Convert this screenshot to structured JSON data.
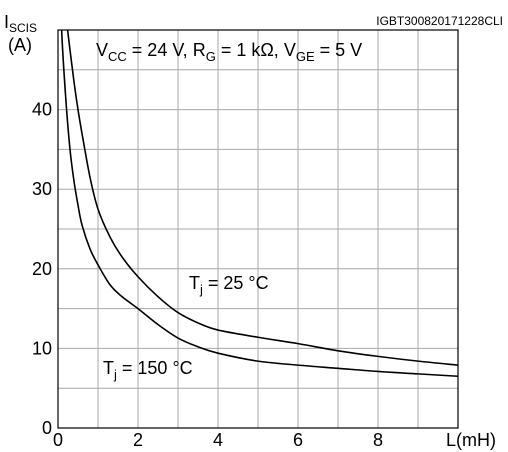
{
  "chart_data": {
    "type": "line",
    "reference_id": "IGBT300820171228CLI",
    "ylabel": {
      "main": "I",
      "sub": "SCIS",
      "unit": "(A)"
    },
    "xlabel": "L(mH)",
    "conditions": [
      {
        "main": "V",
        "sub": "CC",
        "rest": " = 24 V, "
      },
      {
        "main": "R",
        "sub": "G",
        "rest": " = 1 kΩ, "
      },
      {
        "main": "V",
        "sub": "GE",
        "rest": " = 5 V"
      }
    ],
    "xlim": [
      0,
      10
    ],
    "ylim": [
      0,
      50
    ],
    "x_ticks": [
      "0",
      "2",
      "4",
      "6",
      "8"
    ],
    "y_ticks": [
      "0",
      "10",
      "20",
      "30",
      "40"
    ],
    "x_tick_values": [
      0,
      2,
      4,
      6,
      8
    ],
    "y_tick_values": [
      0,
      10,
      20,
      30,
      40
    ],
    "grid": true,
    "series": [
      {
        "name_main": "T",
        "name_sub": "j",
        "name_rest": " = 25 °C",
        "color": "#000000",
        "x": [
          0.1,
          0.2,
          0.3,
          0.4,
          0.5,
          0.6,
          0.8,
          1.0,
          1.3,
          1.6,
          2.0,
          2.5,
          3.0,
          3.5,
          4.0,
          5.0,
          6.0,
          7.0,
          8.0,
          9.0,
          10.0
        ],
        "y": [
          54.0,
          51.5,
          47.5,
          43.5,
          40.0,
          37.0,
          31.5,
          27.5,
          24.0,
          21.5,
          19.0,
          16.5,
          14.5,
          13.2,
          12.3,
          11.4,
          10.6,
          9.7,
          9.0,
          8.4,
          7.9
        ]
      },
      {
        "name_main": "T",
        "name_sub": "j",
        "name_rest": " = 150 °C",
        "color": "#000000",
        "x": [
          0.07,
          0.1,
          0.2,
          0.3,
          0.4,
          0.5,
          0.6,
          0.8,
          1.0,
          1.3,
          1.6,
          2.0,
          2.5,
          3.0,
          3.5,
          4.0,
          5.0,
          6.0,
          7.0,
          8.0,
          9.0,
          10.0
        ],
        "y": [
          54.0,
          49.0,
          41.0,
          35.0,
          31.0,
          28.0,
          25.5,
          22.5,
          20.5,
          18.0,
          16.5,
          15.0,
          13.0,
          11.3,
          10.2,
          9.4,
          8.4,
          7.9,
          7.5,
          7.1,
          6.8,
          6.5
        ]
      }
    ]
  }
}
